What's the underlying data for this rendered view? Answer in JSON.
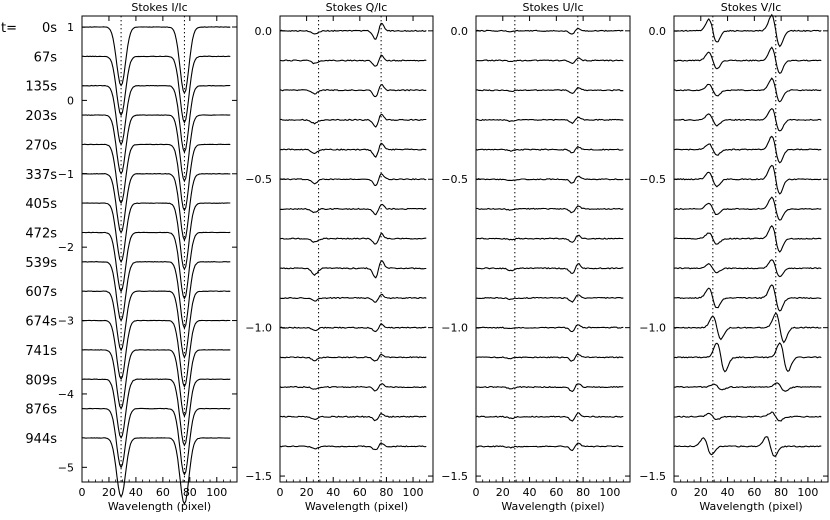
{
  "time_prefix": "t=",
  "time_labels": [
    "0s",
    "67s",
    "135s",
    "203s",
    "270s",
    "337s",
    "405s",
    "472s",
    "539s",
    "607s",
    "674s",
    "741s",
    "809s",
    "876s",
    "944s"
  ],
  "chart_data": [
    {
      "type": "line",
      "title": "Stokes I/Ic",
      "xlabel": "Wavelength (pixel)",
      "ylabel": "",
      "xlim": [
        0,
        115
      ],
      "ylim": [
        -5.2,
        1.15
      ],
      "xticks": [
        0,
        20,
        40,
        60,
        80,
        100
      ],
      "yticks": [
        1,
        0,
        -1,
        -2,
        -3,
        -4,
        -5
      ],
      "ytick_labels": [
        "1",
        "0",
        "−1",
        "−2",
        "−3",
        "−4",
        "−5"
      ],
      "offset_step": -0.4,
      "reference_lines_x": [
        29,
        76
      ],
      "line_centers": [
        29,
        76
      ],
      "depths": [
        0.8,
        0.8,
        0.8,
        0.8,
        0.8,
        0.8,
        0.8,
        0.8,
        0.8,
        0.8,
        0.8,
        0.8,
        0.8,
        0.8,
        0.8
      ],
      "depths2": [
        0.9,
        0.9,
        0.9,
        0.9,
        0.9,
        0.9,
        0.9,
        0.9,
        0.9,
        0.9,
        0.9,
        0.9,
        0.9,
        0.9,
        0.9
      ],
      "grid": false
    },
    {
      "type": "line",
      "title": "Stokes Q/Ic",
      "xlabel": "Wavelength (pixel)",
      "ylabel": "",
      "xlim": [
        0,
        115
      ],
      "ylim": [
        -1.52,
        0.05
      ],
      "xticks": [
        0,
        20,
        40,
        60,
        80,
        100
      ],
      "yticks": [
        0.0,
        -0.5,
        -1.0,
        -1.5
      ],
      "ytick_labels": [
        "0.0",
        "−0.5",
        "−1.0",
        "−1.5"
      ],
      "offset_step": -0.1,
      "reference_lines_x": [
        29,
        76
      ],
      "line_centers": [
        26,
        72
      ],
      "amplitudes": [
        0.012,
        0.01,
        0.012,
        0.012,
        0.012,
        0.014,
        0.012,
        0.012,
        0.022,
        0.01,
        0.01,
        0.01,
        0.008,
        0.008,
        0.008
      ],
      "amplitudes2": [
        0.028,
        0.02,
        0.022,
        0.022,
        0.024,
        0.02,
        0.018,
        0.018,
        0.03,
        0.014,
        0.014,
        0.012,
        0.012,
        0.012,
        0.012
      ],
      "grid": false
    },
    {
      "type": "line",
      "title": "Stokes U/Ic",
      "xlabel": "Wavelength (pixel)",
      "ylabel": "",
      "xlim": [
        0,
        115
      ],
      "ylim": [
        -1.52,
        0.05
      ],
      "xticks": [
        0,
        20,
        40,
        60,
        80,
        100
      ],
      "yticks": [
        0.0,
        -0.5,
        -1.0,
        -1.5
      ],
      "ytick_labels": [
        "0.0",
        "−0.5",
        "−1.0",
        "−1.5"
      ],
      "offset_step": -0.1,
      "reference_lines_x": [
        29,
        76
      ],
      "line_centers": [
        26,
        72
      ],
      "amplitudes": [
        0.004,
        0.004,
        0.004,
        0.004,
        0.004,
        0.004,
        0.004,
        0.004,
        0.008,
        0.004,
        0.004,
        0.004,
        0.006,
        0.006,
        0.004
      ],
      "amplitudes2": [
        0.01,
        0.01,
        0.01,
        0.01,
        0.01,
        0.012,
        0.012,
        0.012,
        0.018,
        0.012,
        0.012,
        0.012,
        0.014,
        0.014,
        0.012
      ],
      "grid": false
    },
    {
      "type": "line",
      "title": "Stokes V/Ic",
      "xlabel": "Wavelength (pixel)",
      "ylabel": "",
      "xlim": [
        0,
        115
      ],
      "ylim": [
        -1.52,
        0.05
      ],
      "xticks": [
        0,
        20,
        40,
        60,
        80,
        100
      ],
      "yticks": [
        0.0,
        -0.5,
        -1.0,
        -1.5
      ],
      "ytick_labels": [
        "0.0",
        "−0.5",
        "−1.0",
        "−1.5"
      ],
      "offset_step": -0.1,
      "reference_lines_x": [
        29,
        76
      ],
      "line_centers": [
        29,
        76
      ],
      "amplitudes": [
        0.04,
        0.03,
        0.02,
        0.02,
        0.02,
        0.025,
        0.02,
        0.02,
        0.015,
        0.035,
        0.04,
        0.05,
        0.01,
        0.01,
        0.03
      ],
      "amplitudes2": [
        0.055,
        0.045,
        0.04,
        0.04,
        0.045,
        0.05,
        0.04,
        0.045,
        0.03,
        0.045,
        0.05,
        0.05,
        0.015,
        0.015,
        0.035
      ],
      "shifts": [
        0,
        0,
        0,
        0,
        0,
        0,
        0,
        0,
        0,
        0,
        3,
        6,
        4,
        0,
        -4
      ],
      "grid": false
    }
  ]
}
